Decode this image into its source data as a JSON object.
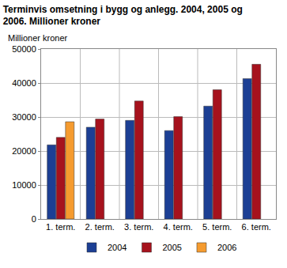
{
  "chart_data": {
    "type": "bar",
    "title": "Terminvis omsetning i bygg og anlegg. 2004, 2005 og 2006. Millioner kroner",
    "ylabel": "Millioner kroner",
    "categories": [
      "1. term.",
      "2. term.",
      "3. term.",
      "4. term.",
      "5. term.",
      "6. term."
    ],
    "series": [
      {
        "name": "2004",
        "color": "#1c3f94",
        "values": [
          21800,
          27000,
          29000,
          26000,
          33200,
          41300
        ]
      },
      {
        "name": "2005",
        "color": "#a6121d",
        "values": [
          24000,
          29400,
          34700,
          30100,
          38000,
          45500
        ]
      },
      {
        "name": "2006",
        "color": "#f59b2f",
        "values": [
          28600,
          null,
          null,
          null,
          null,
          null
        ]
      }
    ],
    "ylim": [
      0,
      50000
    ],
    "yticks": [
      0,
      10000,
      20000,
      30000,
      40000,
      50000
    ],
    "grid": true,
    "legend": "bottom"
  }
}
